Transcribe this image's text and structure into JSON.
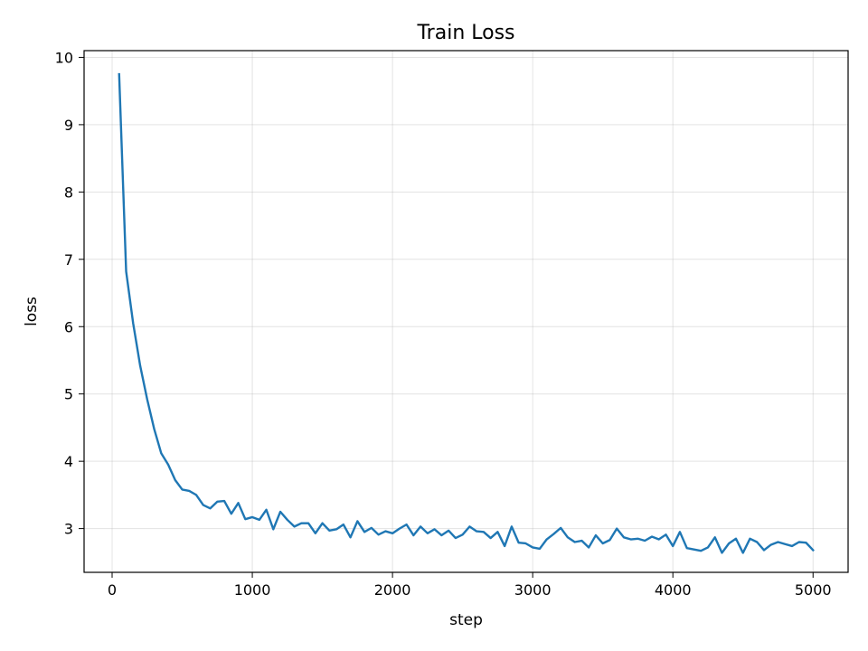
{
  "chart_data": {
    "type": "line",
    "title": "Train Loss",
    "xlabel": "step",
    "ylabel": "loss",
    "xlim": [
      -200,
      5250
    ],
    "ylim": [
      2.35,
      10.1
    ],
    "xticks": [
      0,
      1000,
      2000,
      3000,
      4000,
      5000
    ],
    "yticks": [
      3,
      4,
      5,
      6,
      7,
      8,
      9,
      10
    ],
    "grid": true,
    "series": [
      {
        "color": "#1f77b4",
        "x": [
          50,
          100,
          150,
          200,
          250,
          300,
          350,
          400,
          450,
          500,
          550,
          600,
          650,
          700,
          750,
          800,
          850,
          900,
          950,
          1000,
          1050,
          1100,
          1150,
          1200,
          1250,
          1300,
          1350,
          1400,
          1450,
          1500,
          1550,
          1600,
          1650,
          1700,
          1750,
          1800,
          1850,
          1900,
          1950,
          2000,
          2050,
          2100,
          2150,
          2200,
          2250,
          2300,
          2350,
          2400,
          2450,
          2500,
          2550,
          2600,
          2650,
          2700,
          2750,
          2800,
          2850,
          2900,
          2950,
          3000,
          3050,
          3100,
          3150,
          3200,
          3250,
          3300,
          3350,
          3400,
          3450,
          3500,
          3550,
          3600,
          3650,
          3700,
          3750,
          3800,
          3850,
          3900,
          3950,
          4000,
          4050,
          4100,
          4150,
          4200,
          4250,
          4300,
          4350,
          4400,
          4450,
          4500,
          4550,
          4600,
          4650,
          4700,
          4750,
          4800,
          4850,
          4900,
          4950,
          5000
        ],
        "y": [
          9.75,
          6.82,
          6.05,
          5.42,
          4.92,
          4.48,
          4.12,
          3.95,
          3.72,
          3.58,
          3.56,
          3.5,
          3.35,
          3.3,
          3.4,
          3.41,
          3.22,
          3.38,
          3.14,
          3.17,
          3.13,
          3.28,
          2.99,
          3.25,
          3.13,
          3.03,
          3.08,
          3.08,
          2.93,
          3.08,
          2.97,
          2.99,
          3.06,
          2.87,
          3.11,
          2.95,
          3.01,
          2.91,
          2.96,
          2.93,
          3.0,
          3.06,
          2.9,
          3.03,
          2.93,
          2.99,
          2.9,
          2.97,
          2.86,
          2.91,
          3.03,
          2.96,
          2.95,
          2.86,
          2.95,
          2.74,
          3.03,
          2.79,
          2.78,
          2.72,
          2.7,
          2.84,
          2.92,
          3.01,
          2.87,
          2.8,
          2.82,
          2.72,
          2.9,
          2.78,
          2.83,
          3.0,
          2.87,
          2.84,
          2.85,
          2.82,
          2.88,
          2.84,
          2.91,
          2.74,
          2.95,
          2.71,
          2.69,
          2.67,
          2.72,
          2.87,
          2.64,
          2.78,
          2.85,
          2.64,
          2.85,
          2.8,
          2.68,
          2.76,
          2.8,
          2.77,
          2.74,
          2.8,
          2.79,
          2.68
        ]
      }
    ]
  }
}
